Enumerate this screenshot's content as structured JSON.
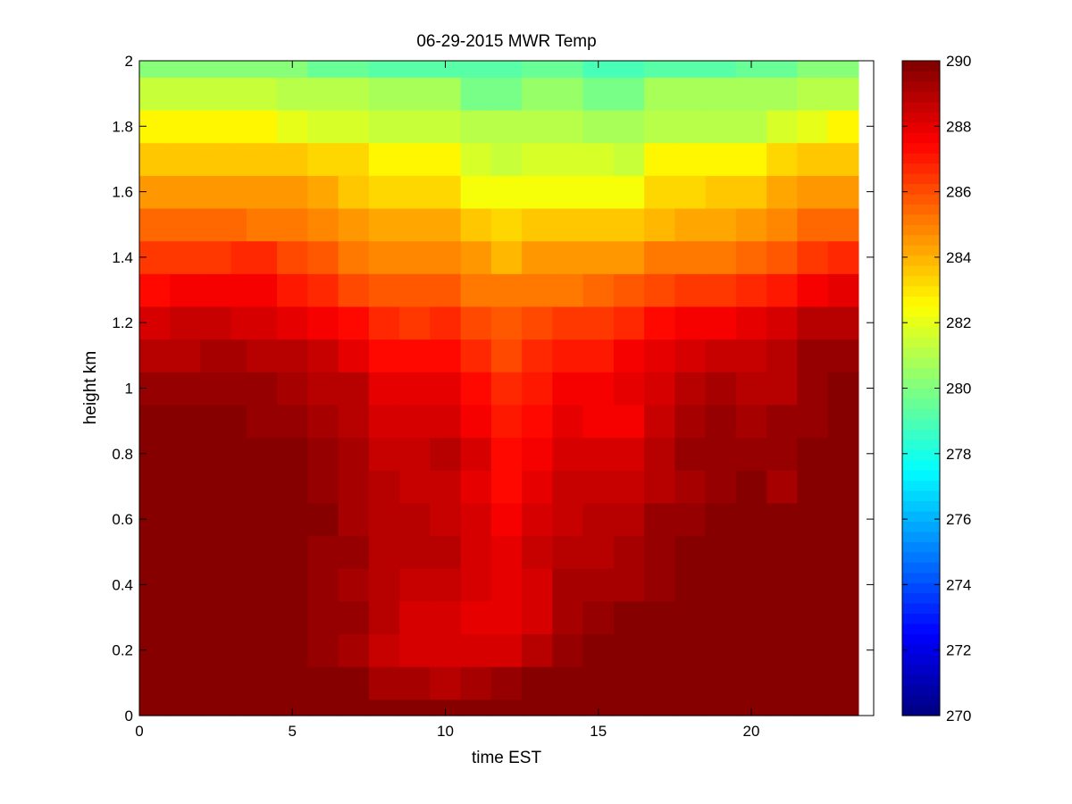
{
  "chart_data": {
    "type": "heatmap",
    "title": "06-29-2015 MWR Temp",
    "xlabel": "time EST",
    "ylabel": "height km",
    "xlim": [
      0,
      24
    ],
    "ylim": [
      0,
      2
    ],
    "clim": [
      270,
      290
    ],
    "colormap": "jet",
    "x_ticks": [
      0,
      5,
      10,
      15,
      20
    ],
    "y_ticks": [
      0,
      0.2,
      0.4,
      0.6,
      0.8,
      1,
      1.2,
      1.4,
      1.6,
      1.8,
      2
    ],
    "colorbar_ticks": [
      270,
      272,
      274,
      276,
      278,
      280,
      282,
      284,
      286,
      288,
      290
    ],
    "x_edges": [
      0,
      1,
      2,
      3,
      3.5,
      4.5,
      5.5,
      6.5,
      7.5,
      8.5,
      9.5,
      10.5,
      11.5,
      12.5,
      13.5,
      14.5,
      15.5,
      16.5,
      17.5,
      18.5,
      19.5,
      20.5,
      21.5,
      22.5,
      23.5
    ],
    "y_edges": [
      0,
      0.05,
      0.15,
      0.25,
      0.35,
      0.45,
      0.55,
      0.65,
      0.75,
      0.85,
      0.95,
      1.05,
      1.15,
      1.25,
      1.35,
      1.45,
      1.55,
      1.65,
      1.75,
      1.85,
      1.95,
      2.0
    ],
    "z": [
      [
        290,
        290,
        290,
        290,
        290,
        290,
        290,
        290,
        290,
        290,
        290,
        290,
        290,
        290,
        290,
        290,
        290,
        290,
        290,
        290,
        290,
        290,
        290,
        290
      ],
      [
        290,
        290,
        290,
        290,
        290,
        290,
        290,
        290,
        289.3,
        289.2,
        289.0,
        289.3,
        289.5,
        290,
        290,
        290,
        290,
        290,
        290,
        290,
        290,
        290,
        290,
        290
      ],
      [
        290,
        290,
        290,
        290,
        290,
        290,
        289.6,
        289.3,
        288.6,
        288.3,
        288.3,
        288.3,
        288.4,
        289.0,
        289.6,
        290,
        290,
        290,
        290,
        290,
        290,
        290,
        290,
        290
      ],
      [
        290,
        290,
        290,
        290,
        290,
        290,
        289.6,
        289.4,
        288.8,
        288.3,
        288.3,
        288.0,
        287.9,
        288.2,
        289.3,
        289.6,
        289.9,
        290,
        290,
        290,
        290,
        290,
        290,
        290
      ],
      [
        290,
        290,
        290,
        290,
        290,
        290,
        289.6,
        289.3,
        288.9,
        288.7,
        288.7,
        288.2,
        287.9,
        288.3,
        289.1,
        289.3,
        289.2,
        289.5,
        290,
        290,
        290,
        290,
        290,
        290
      ],
      [
        290,
        290,
        290,
        290,
        290,
        290,
        289.6,
        289.4,
        289.0,
        289.0,
        288.8,
        288.3,
        288.0,
        288.5,
        288.9,
        289.0,
        289.1,
        289.4,
        289.8,
        290,
        290,
        290,
        290,
        290
      ],
      [
        290,
        290,
        290,
        290,
        290,
        290,
        289.7,
        289.3,
        289.0,
        288.8,
        288.6,
        288.2,
        287.7,
        288.2,
        288.6,
        288.8,
        288.8,
        289.4,
        289.6,
        290,
        290,
        290,
        290,
        290
      ],
      [
        290,
        290,
        290,
        290,
        290,
        290,
        289.5,
        289.2,
        288.9,
        288.7,
        288.7,
        288.0,
        287.4,
        288.0,
        288.6,
        288.5,
        288.5,
        289.0,
        289.3,
        289.5,
        289.7,
        289.3,
        290,
        290
      ],
      [
        290,
        290,
        290,
        290,
        290,
        289.8,
        289.5,
        289.2,
        288.6,
        288.5,
        288.8,
        288.3,
        287.2,
        287.7,
        288.2,
        288.2,
        288.2,
        288.8,
        289.4,
        289.5,
        289.5,
        289.4,
        289.8,
        290
      ],
      [
        290,
        290,
        290,
        290,
        289.6,
        289.4,
        289.3,
        289.0,
        288.4,
        288.4,
        288.4,
        287.7,
        287.0,
        287.3,
        287.9,
        287.6,
        287.7,
        288.6,
        289.1,
        289.4,
        289.3,
        289.5,
        289.6,
        290
      ],
      [
        289.6,
        289.6,
        289.6,
        289.6,
        289.4,
        289.2,
        289.0,
        288.8,
        288.1,
        288.1,
        288.1,
        287.4,
        286.8,
        287.0,
        287.5,
        287.6,
        287.9,
        288.3,
        288.9,
        289.2,
        289.0,
        289.0,
        289.5,
        289.8
      ],
      [
        289.0,
        289.0,
        289.2,
        289.2,
        289.0,
        288.8,
        288.5,
        288.1,
        287.2,
        287.2,
        287.2,
        286.7,
        286.1,
        286.6,
        287.1,
        287.1,
        287.5,
        287.9,
        288.3,
        288.7,
        288.6,
        288.9,
        289.4,
        289.4
      ],
      [
        288.2,
        288.6,
        288.6,
        288.4,
        288.2,
        287.9,
        287.5,
        287.4,
        286.6,
        286.3,
        286.7,
        286.1,
        285.7,
        286.1,
        286.3,
        286.3,
        286.6,
        287.2,
        287.5,
        287.7,
        287.9,
        288.2,
        288.9,
        289.0
      ],
      [
        287.3,
        287.5,
        287.6,
        287.7,
        287.5,
        287.1,
        286.7,
        286.2,
        285.7,
        285.7,
        285.7,
        285.2,
        285.0,
        285.2,
        285.2,
        285.6,
        285.7,
        286.2,
        286.4,
        286.5,
        286.6,
        287.1,
        287.5,
        287.9
      ],
      [
        286.3,
        286.3,
        286.5,
        286.7,
        286.6,
        286.2,
        285.7,
        285.2,
        284.8,
        284.8,
        284.8,
        284.4,
        284.0,
        284.4,
        284.4,
        284.6,
        284.6,
        285.0,
        285.1,
        285.3,
        285.4,
        285.7,
        286.3,
        286.8
      ],
      [
        285.5,
        285.5,
        285.5,
        285.5,
        285.2,
        285.1,
        284.8,
        284.6,
        284.1,
        284.1,
        284.1,
        283.7,
        283.3,
        283.7,
        283.7,
        283.7,
        283.7,
        284.0,
        284.3,
        284.3,
        284.5,
        284.9,
        285.4,
        285.4
      ],
      [
        284.6,
        284.6,
        284.6,
        284.6,
        284.6,
        284.6,
        284.2,
        283.6,
        283.2,
        283.2,
        283.2,
        282.2,
        282.2,
        282.2,
        282.2,
        282.2,
        282.2,
        283.2,
        283.4,
        283.6,
        283.6,
        284.2,
        284.6,
        284.6
      ],
      [
        283.5,
        283.5,
        283.5,
        283.5,
        283.5,
        283.5,
        283.2,
        283.2,
        282.7,
        282.7,
        282.7,
        281.8,
        281.4,
        281.8,
        281.8,
        281.8,
        281.4,
        282.7,
        282.7,
        282.7,
        282.7,
        283.2,
        283.5,
        283.5
      ],
      [
        282.5,
        282.5,
        282.5,
        282.5,
        282.5,
        282.0,
        281.6,
        281.6,
        281.3,
        281.3,
        281.3,
        281.0,
        281.0,
        281.0,
        281.0,
        280.7,
        280.7,
        281.0,
        281.0,
        281.0,
        281.0,
        281.6,
        282.0,
        282.5
      ],
      [
        281.4,
        281.4,
        281.4,
        281.4,
        281.4,
        281.1,
        281.1,
        281.1,
        280.7,
        280.7,
        280.7,
        279.8,
        279.8,
        280.4,
        280.4,
        279.8,
        279.8,
        280.7,
        280.7,
        280.7,
        280.7,
        280.7,
        281.1,
        281.1
      ],
      [
        280.1,
        280.1,
        280.1,
        280.1,
        280.1,
        280.1,
        279.6,
        279.6,
        279.3,
        279.3,
        279.3,
        279.3,
        279.3,
        279.6,
        279.6,
        279.0,
        279.0,
        279.3,
        279.3,
        279.3,
        279.6,
        279.6,
        280.1,
        280.1
      ]
    ]
  }
}
